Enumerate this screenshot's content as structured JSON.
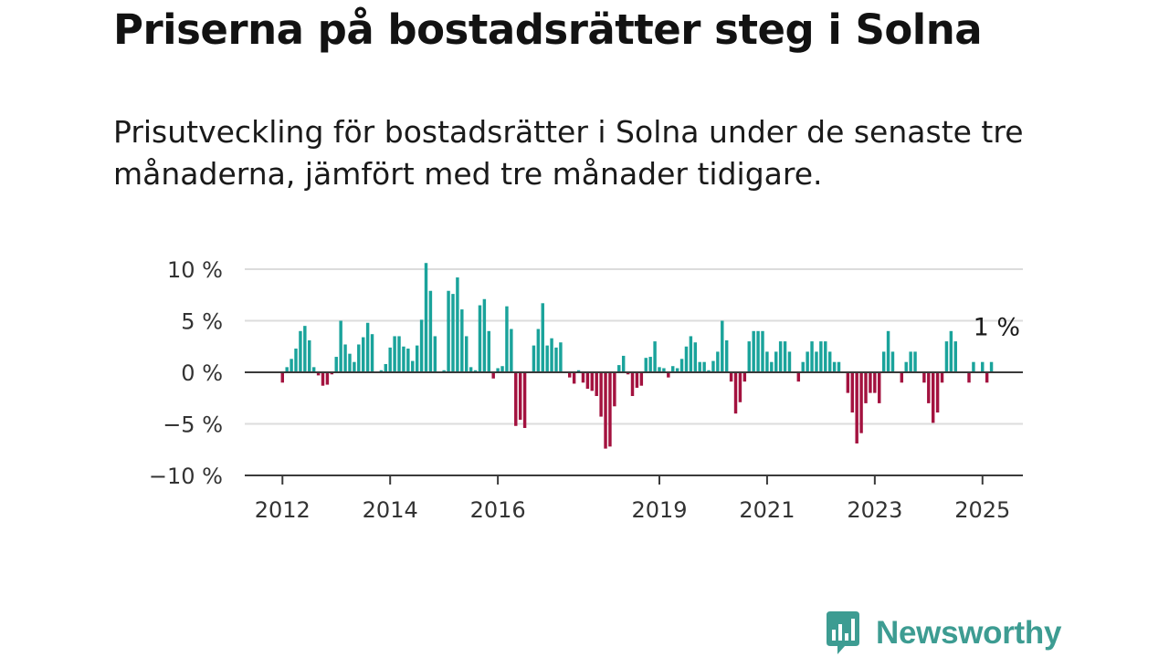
{
  "header": {
    "title": "Priserna på bostadsrätter steg i Solna",
    "subtitle": "Prisutveckling för bostadsrätter i Solna under de senaste tre månaderna, jämfört med tre månader tidigare."
  },
  "brand": {
    "name": "Newsworthy",
    "color": "#3d9c92"
  },
  "chart_data": {
    "type": "bar",
    "title": "",
    "xlabel": "",
    "ylabel": "",
    "ylim": [
      -10,
      10
    ],
    "yticks": [
      10,
      5,
      0,
      -5,
      -10
    ],
    "ytick_labels": [
      "10 %",
      "5 %",
      "0 %",
      "−5 %",
      "−10 %"
    ],
    "xticks": [
      2012,
      2014,
      2016,
      2019,
      2021,
      2023,
      2025
    ],
    "xrange": [
      2011.3,
      2025.75
    ],
    "grid": true,
    "colors": {
      "positive": "#1aa39b",
      "negative": "#a3123f"
    },
    "annotation": {
      "text": "1 %",
      "x": 2025.2,
      "y": 1
    },
    "series": [
      {
        "start": 2012.0,
        "step": 0.08333,
        "values": [
          -1,
          0.5,
          1.3,
          2.3,
          4.0,
          4.5,
          3.1,
          0.5,
          -0.3,
          -1.3,
          -1.2,
          -0.2,
          1.5,
          5.0,
          2.7,
          1.8,
          1.0,
          2.7,
          3.4,
          4.8,
          3.7,
          0,
          0.2,
          0.8,
          2.4,
          3.5,
          3.5,
          2.5,
          2.3,
          1.1,
          2.6,
          5.1,
          10.6,
          7.9,
          3.5,
          0,
          0.2,
          7.9,
          7.6,
          9.2,
          6.1,
          3.5,
          0.5,
          0.2,
          6.5,
          7.1,
          4.0,
          -0.6,
          0.4,
          0.6,
          6.4,
          4.2,
          -5.2,
          -4.6,
          -5.4,
          0,
          2.6,
          4.2,
          6.7,
          2.6,
          3.3,
          2.4,
          2.9,
          0,
          -0.5,
          -1.1,
          0.2,
          -1.0,
          -1.6,
          -1.8,
          -2.3,
          -4.3,
          -7.4,
          -7.2,
          -3.3,
          0.7,
          1.6,
          -0.2,
          -2.3,
          -1.5,
          -1.3,
          1.4,
          1.5,
          3.0,
          0.5,
          0.4,
          -0.5,
          0.6,
          0.4,
          1.3,
          2.5,
          3.5,
          2.9,
          1.0,
          1.0,
          0.2,
          1.1,
          2.0,
          5.0,
          3.1,
          -0.9,
          -4.0,
          -2.9,
          -0.9,
          3.0,
          4.0,
          4.0,
          4.0,
          2.0,
          1.0,
          2.0,
          3.0,
          3.0,
          2.0,
          0,
          -0.9,
          1.0,
          2.0,
          3.0,
          2.0,
          3.0,
          3.0,
          2.0,
          1.0,
          1.0,
          0,
          -2.0,
          -3.9,
          -6.9,
          -5.9,
          -3.0,
          -2.0,
          -2.0,
          -3.0,
          2.0,
          4.0,
          2.0,
          0,
          -1.0,
          1.0,
          2.0,
          2.0,
          0,
          -1.0,
          -3.0,
          -4.9,
          -3.9,
          -1.0,
          3.0,
          4.0,
          3.0,
          0,
          0,
          -1.0,
          1.0,
          0,
          1.0,
          -1.0,
          1.0
        ]
      }
    ]
  }
}
